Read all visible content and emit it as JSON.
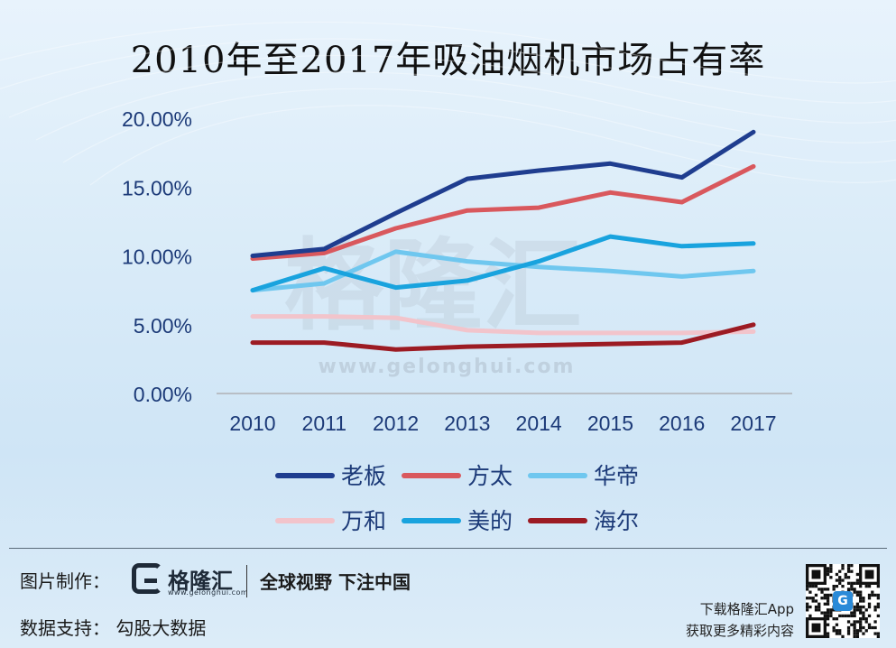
{
  "title": "2010年至2017年吸油烟机市场占有率",
  "chart_data": {
    "type": "line",
    "title": "2010年至2017年吸油烟机市场占有率",
    "xlabel": "",
    "ylabel": "",
    "categories": [
      "2010",
      "2011",
      "2012",
      "2013",
      "2014",
      "2015",
      "2016",
      "2017"
    ],
    "y_ticks": [
      "0.00%",
      "5.00%",
      "10.00%",
      "15.00%",
      "20.00%"
    ],
    "ylim": [
      0,
      20
    ],
    "grid": false,
    "legend_position": "bottom",
    "series": [
      {
        "name": "老板",
        "color": "#1f3d8f",
        "values": [
          10.0,
          10.5,
          13.1,
          15.6,
          16.2,
          16.7,
          15.7,
          19.0
        ]
      },
      {
        "name": "方太",
        "color": "#d9585d",
        "values": [
          9.8,
          10.2,
          12.0,
          13.3,
          13.5,
          14.6,
          13.9,
          16.5
        ]
      },
      {
        "name": "华帝",
        "color": "#6fc7ef",
        "values": [
          7.5,
          8.0,
          10.3,
          9.6,
          9.2,
          8.9,
          8.5,
          8.9
        ]
      },
      {
        "name": "万和",
        "color": "#f2c4cb",
        "values": [
          5.6,
          5.6,
          5.5,
          4.6,
          4.4,
          4.4,
          4.4,
          4.5
        ]
      },
      {
        "name": "美的",
        "color": "#19a3de",
        "values": [
          7.5,
          9.1,
          7.7,
          8.2,
          9.6,
          11.4,
          10.7,
          10.9
        ]
      },
      {
        "name": "海尔",
        "color": "#9c1b23",
        "values": [
          3.7,
          3.7,
          3.2,
          3.4,
          3.5,
          3.6,
          3.7,
          5.0
        ]
      }
    ]
  },
  "watermark": {
    "text": "格隆汇",
    "url": "www.gelonghui.com"
  },
  "footer": {
    "credit_label": "图片制作：",
    "brand_name": "格隆汇",
    "brand_url": "www.gelonghui.com",
    "slogan": "全球视野 下注中国",
    "source_label": "数据支持：  勾股大数据",
    "download_line1": "下载格隆汇App",
    "download_line2": "获取更多精彩内容",
    "qr_badge": "G"
  }
}
